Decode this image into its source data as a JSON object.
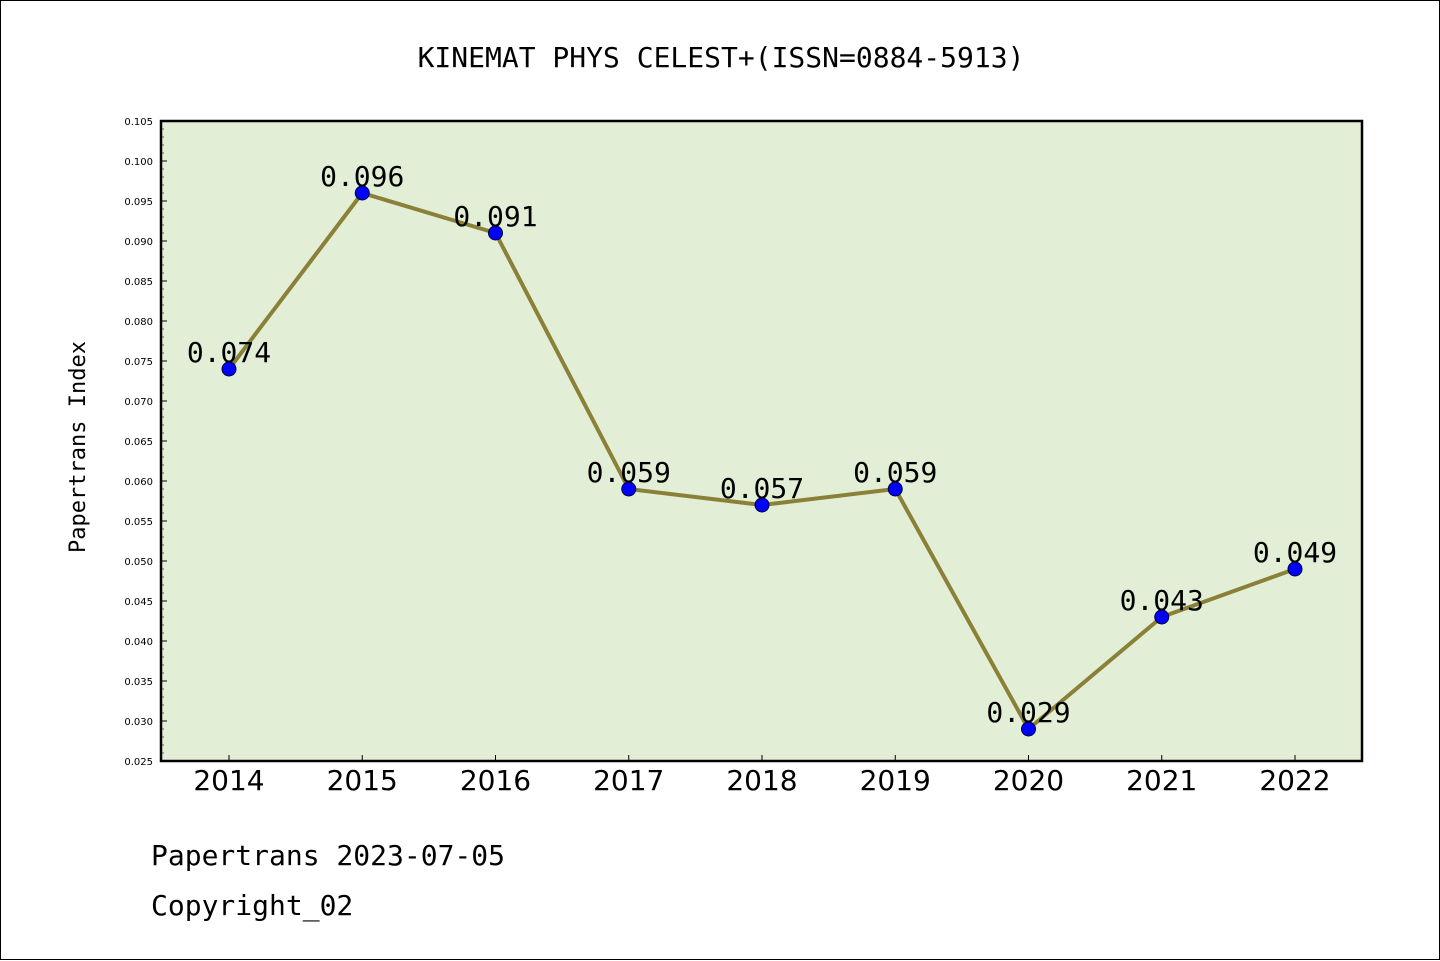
{
  "chart_data": {
    "type": "line",
    "title": "KINEMAT PHYS CELEST+(ISSN=0884-5913)",
    "xlabel": "",
    "ylabel": "Papertrans Index",
    "categories": [
      "2014",
      "2015",
      "2016",
      "2017",
      "2018",
      "2019",
      "2020",
      "2021",
      "2022"
    ],
    "values": [
      0.074,
      0.096,
      0.091,
      0.059,
      0.057,
      0.059,
      0.029,
      0.043,
      0.049
    ],
    "data_labels": [
      "0.074",
      "0.096",
      "0.091",
      "0.059",
      "0.057",
      "0.059",
      "0.029",
      "0.043",
      "0.049"
    ],
    "ylim": [
      0.025,
      0.105
    ],
    "yticks": [
      "0.025",
      "0.030",
      "0.035",
      "0.040",
      "0.045",
      "0.050",
      "0.055",
      "0.060",
      "0.065",
      "0.070",
      "0.075",
      "0.080",
      "0.085",
      "0.090",
      "0.095",
      "0.100",
      "0.105"
    ],
    "grid": false,
    "colors": {
      "plot_background": "#e2efd6",
      "line": "#8b8038",
      "marker": "#0000ff"
    }
  },
  "footer": {
    "source": "Papertrans 2023-07-05",
    "copyright": "Copyright_02"
  }
}
